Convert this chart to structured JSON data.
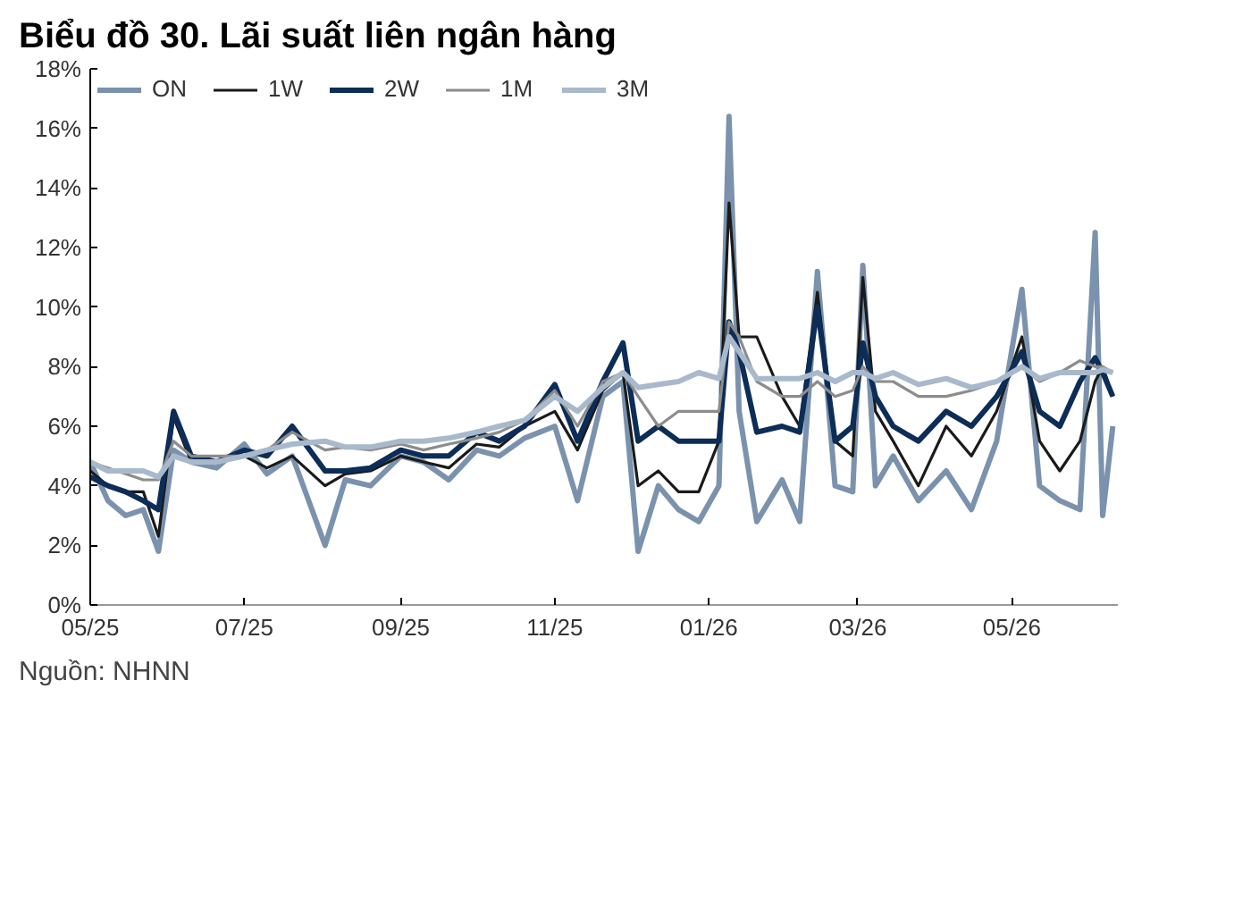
{
  "chart_data": {
    "type": "line",
    "title": "Biểu đồ 30. Lãi suất liên ngân hàng",
    "annotations": [
      "Nguồn: NHNN"
    ],
    "x": [
      "2025-05-01",
      "2025-05-08",
      "2025-05-15",
      "2025-05-22",
      "2025-05-28",
      "2025-06-03",
      "2025-06-10",
      "2025-06-20",
      "2025-07-01",
      "2025-07-10",
      "2025-07-20",
      "2025-08-02",
      "2025-08-10",
      "2025-08-20",
      "2025-09-01",
      "2025-09-10",
      "2025-09-20",
      "2025-10-01",
      "2025-10-10",
      "2025-10-20",
      "2025-11-01",
      "2025-11-10",
      "2025-11-20",
      "2025-11-28",
      "2025-12-04",
      "2025-12-12",
      "2025-12-20",
      "2025-12-28",
      "2026-01-05",
      "2026-01-09",
      "2026-01-13",
      "2026-01-20",
      "2026-01-30",
      "2026-02-06",
      "2026-02-13",
      "2026-02-20",
      "2026-02-27",
      "2026-03-03",
      "2026-03-08",
      "2026-03-15",
      "2026-03-25",
      "2026-04-05",
      "2026-04-15",
      "2026-04-25",
      "2026-05-05",
      "2026-05-12",
      "2026-05-20",
      "2026-05-28",
      "2026-06-03",
      "2026-06-06",
      "2026-06-10"
    ],
    "series": [
      {
        "name": "ON",
        "color": "#7a92ad",
        "values": [
          4.8,
          3.5,
          3.0,
          3.2,
          1.8,
          5.2,
          4.8,
          4.6,
          5.4,
          4.4,
          5.0,
          2.0,
          4.2,
          4.0,
          5.0,
          4.8,
          4.2,
          5.2,
          5.0,
          5.6,
          6.0,
          3.5,
          7.0,
          7.5,
          1.8,
          4.0,
          3.2,
          2.8,
          4.0,
          16.4,
          6.5,
          2.8,
          4.2,
          2.8,
          11.2,
          4.0,
          3.8,
          11.4,
          4.0,
          5.0,
          3.5,
          4.5,
          3.2,
          5.5,
          10.6,
          4.0,
          3.5,
          3.2,
          12.5,
          3.0,
          6.0
        ]
      },
      {
        "name": "1W",
        "color": "#1a1a1a",
        "values": [
          4.5,
          4.0,
          3.8,
          3.8,
          2.3,
          6.3,
          4.8,
          4.8,
          5.0,
          4.6,
          5.0,
          4.0,
          4.4,
          4.5,
          5.0,
          4.8,
          4.6,
          5.4,
          5.3,
          6.0,
          6.5,
          5.2,
          7.2,
          7.8,
          4.0,
          4.5,
          3.8,
          3.8,
          5.5,
          13.5,
          9.0,
          9.0,
          7.0,
          6.0,
          10.5,
          5.5,
          5.0,
          11.0,
          6.5,
          5.5,
          4.0,
          6.0,
          5.0,
          6.5,
          9.0,
          5.5,
          4.5,
          5.5,
          7.5,
          8.0,
          7.0
        ]
      },
      {
        "name": "2W",
        "color": "#0c2d57",
        "values": [
          4.3,
          4.0,
          3.8,
          3.5,
          3.2,
          6.5,
          5.0,
          4.8,
          5.2,
          5.0,
          6.0,
          4.5,
          4.5,
          4.6,
          5.2,
          5.0,
          5.0,
          5.8,
          5.5,
          6.0,
          7.4,
          5.5,
          7.5,
          8.8,
          5.5,
          6.0,
          5.5,
          5.5,
          5.5,
          9.5,
          8.5,
          5.8,
          6.0,
          5.8,
          10.0,
          5.5,
          6.0,
          8.8,
          7.0,
          6.0,
          5.5,
          6.5,
          6.0,
          7.0,
          8.5,
          6.5,
          6.0,
          7.5,
          8.3,
          7.8,
          7.0
        ]
      },
      {
        "name": "1M",
        "color": "#8c8c8c",
        "values": [
          4.8,
          4.6,
          4.4,
          4.2,
          4.2,
          5.5,
          5.0,
          5.0,
          5.0,
          5.2,
          5.8,
          5.2,
          5.3,
          5.2,
          5.4,
          5.2,
          5.4,
          5.6,
          5.8,
          6.2,
          7.2,
          6.0,
          7.5,
          7.8,
          7.0,
          6.0,
          6.5,
          6.5,
          6.5,
          9.5,
          9.0,
          7.5,
          7.0,
          7.0,
          7.5,
          7.0,
          7.2,
          8.0,
          7.5,
          7.5,
          7.0,
          7.0,
          7.2,
          7.5,
          8.0,
          7.5,
          7.8,
          8.2,
          8.0,
          8.0,
          7.8
        ]
      },
      {
        "name": "3M",
        "color": "#a9b9cc",
        "values": [
          4.8,
          4.5,
          4.5,
          4.5,
          4.3,
          5.0,
          4.8,
          4.8,
          5.0,
          5.2,
          5.4,
          5.5,
          5.3,
          5.3,
          5.5,
          5.5,
          5.6,
          5.8,
          6.0,
          6.2,
          7.0,
          6.5,
          7.3,
          7.8,
          7.3,
          7.4,
          7.5,
          7.8,
          7.6,
          9.0,
          8.5,
          7.6,
          7.6,
          7.6,
          7.8,
          7.5,
          7.8,
          7.8,
          7.6,
          7.8,
          7.4,
          7.6,
          7.3,
          7.5,
          8.0,
          7.6,
          7.8,
          7.8,
          7.8,
          7.9,
          7.8
        ]
      }
    ],
    "xlim": [
      "2025-05-01",
      "2026-06-12"
    ],
    "xticks": [
      {
        "value": "2025-05-01",
        "label": "05/25"
      },
      {
        "value": "2025-07-01",
        "label": "07/25"
      },
      {
        "value": "2025-09-01",
        "label": "09/25"
      },
      {
        "value": "2025-11-01",
        "label": "11/25"
      },
      {
        "value": "2026-01-01",
        "label": "01/26"
      },
      {
        "value": "2026-03-01",
        "label": "03/26"
      },
      {
        "value": "2026-05-01",
        "label": "05/26"
      }
    ],
    "ylim": [
      0,
      18
    ],
    "yticks": [
      {
        "value": 0,
        "label": "0%"
      },
      {
        "value": 2,
        "label": "2%"
      },
      {
        "value": 4,
        "label": "4%"
      },
      {
        "value": 6,
        "label": "6%"
      },
      {
        "value": 8,
        "label": "8%"
      },
      {
        "value": 10,
        "label": "10%"
      },
      {
        "value": 12,
        "label": "12%"
      },
      {
        "value": 14,
        "label": "14%"
      },
      {
        "value": 16,
        "label": "16%"
      },
      {
        "value": 18,
        "label": "18%"
      }
    ],
    "grid": false,
    "legend": "top left",
    "line_style": "solid"
  }
}
